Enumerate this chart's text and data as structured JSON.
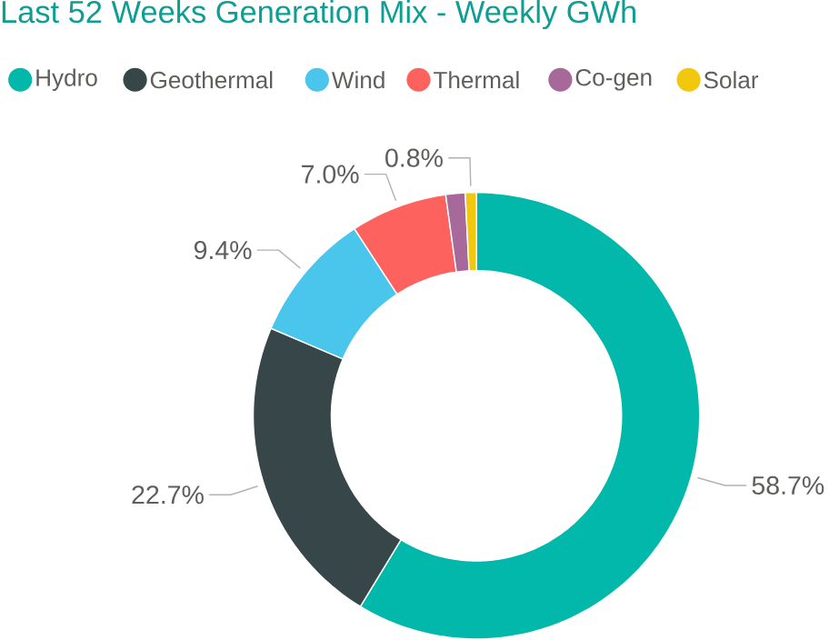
{
  "chart_data": {
    "type": "donut",
    "title": "Last 52 Weeks Generation Mix - Weekly GWh",
    "categories": [
      "Hydro",
      "Geothermal",
      "Wind",
      "Thermal",
      "Co-gen",
      "Solar"
    ],
    "values": [
      58.7,
      22.7,
      9.4,
      7.0,
      1.4,
      0.8
    ],
    "colors": [
      "#01b8aa",
      "#374649",
      "#4ac5eb",
      "#fd625e",
      "#a66999",
      "#f2c80f"
    ],
    "value_labels": [
      "58.7%",
      "22.7%",
      "9.4%",
      "7.0%",
      null,
      "0.8%"
    ],
    "legend": "top left"
  }
}
